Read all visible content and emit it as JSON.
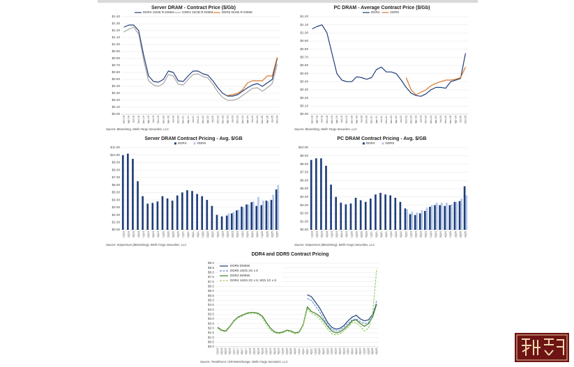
{
  "chart_data": [
    {
      "type": "line",
      "title": "Server DRAM - Contract Price ($/Gb)",
      "source": "Source: Bloomberg, Wells Fargo Securities, LLC",
      "legend": "top",
      "grid": true,
      "categories": [
        "Jan-18",
        "Apr-18",
        "Jul-18",
        "Oct-18",
        "Jan-19",
        "Apr-19",
        "Jul-19",
        "Oct-19",
        "Jan-20",
        "Apr-20",
        "Jul-20",
        "Oct-20",
        "Jan-21",
        "Apr-21",
        "Jul-21",
        "Oct-21",
        "Jan-22",
        "Apr-22",
        "Jul-22",
        "Oct-22",
        "Jan-23",
        "Apr-23",
        "Jul-23",
        "Oct-23",
        "Jan-24",
        "Apr-24",
        "Jul-24",
        "Oct-24",
        "Jan-25",
        "Apr-25",
        "Jul-25",
        "Oct-25"
      ],
      "series": [
        {
          "name": "DDR4 16GB R-DIMM",
          "color": "#1f3d7a",
          "values": [
            1.25,
            1.28,
            1.28,
            1.2,
            0.85,
            0.55,
            0.47,
            0.46,
            0.5,
            0.62,
            0.6,
            0.48,
            0.47,
            0.55,
            0.62,
            0.62,
            0.58,
            0.56,
            0.48,
            0.38,
            0.3,
            0.26,
            0.26,
            0.28,
            0.33,
            0.38,
            0.42,
            0.44,
            0.4,
            0.45,
            0.5,
            0.8
          ]
        },
        {
          "name": "DDR4 32GB R-DIMM",
          "color": "#a6a6a6",
          "values": [
            1.18,
            1.22,
            1.25,
            1.15,
            0.78,
            0.48,
            0.42,
            0.4,
            0.44,
            0.57,
            0.55,
            0.43,
            0.42,
            0.5,
            0.57,
            0.58,
            0.54,
            0.52,
            0.43,
            0.32,
            0.24,
            0.2,
            0.2,
            0.22,
            0.27,
            0.32,
            0.37,
            0.38,
            0.33,
            0.38,
            0.44,
            0.72
          ]
        },
        {
          "name": "DDR5 64GB R-DIMM",
          "color": "#d9742b",
          "values": [
            null,
            null,
            null,
            null,
            null,
            null,
            null,
            null,
            null,
            null,
            null,
            null,
            null,
            null,
            null,
            null,
            null,
            null,
            null,
            null,
            null,
            0.27,
            0.28,
            0.3,
            0.35,
            0.45,
            0.48,
            0.48,
            0.48,
            0.55,
            0.55,
            0.82
          ]
        }
      ],
      "ylim": [
        0,
        1.4
      ],
      "yticks": [
        {
          "value": 0,
          "label": "$0.00"
        },
        {
          "value": 0.1,
          "label": "$0.10"
        },
        {
          "value": 0.2,
          "label": "$0.20"
        },
        {
          "value": 0.3,
          "label": "$0.30"
        },
        {
          "value": 0.4,
          "label": "$0.40"
        },
        {
          "value": 0.5,
          "label": "$0.50"
        },
        {
          "value": 0.6,
          "label": "$0.60"
        },
        {
          "value": 0.7,
          "label": "$0.70"
        },
        {
          "value": 0.8,
          "label": "$0.80"
        },
        {
          "value": 0.9,
          "label": "$0.90"
        },
        {
          "value": 1.0,
          "label": "$1.00"
        },
        {
          "value": 1.1,
          "label": "$1.10"
        },
        {
          "value": 1.2,
          "label": "$1.20"
        },
        {
          "value": 1.3,
          "label": "$1.30"
        },
        {
          "value": 1.4,
          "label": "$1.40"
        }
      ]
    },
    {
      "type": "line",
      "title": "PC DRAM - Average Contract Price ($/Gb)",
      "source": "Source: Bloomberg, Wells Fargo Securities, LLC",
      "legend": "top",
      "grid": true,
      "categories": [
        "Jan-18",
        "Apr-18",
        "Jul-18",
        "Oct-18",
        "Jan-19",
        "Apr-19",
        "Jul-19",
        "Oct-19",
        "Jan-20",
        "Apr-20",
        "Jul-20",
        "Oct-20",
        "Jan-21",
        "Apr-21",
        "Jul-21",
        "Oct-21",
        "Jan-22",
        "Apr-22",
        "Jul-22",
        "Oct-22",
        "Jan-23",
        "Apr-23",
        "Jul-23",
        "Oct-23",
        "Jan-24",
        "Apr-24",
        "Jul-24",
        "Oct-24",
        "Jan-25",
        "Apr-25",
        "Jul-25",
        "Oct-25"
      ],
      "series": [
        {
          "name": "DDR4",
          "color": "#1f3d7a",
          "values": [
            1.05,
            1.08,
            1.1,
            1.0,
            0.75,
            0.5,
            0.42,
            0.4,
            0.4,
            0.46,
            0.45,
            0.43,
            0.45,
            0.55,
            0.58,
            0.52,
            0.52,
            0.5,
            0.42,
            0.33,
            0.26,
            0.23,
            0.22,
            0.25,
            0.3,
            0.33,
            0.33,
            0.32,
            0.4,
            0.42,
            0.44,
            0.75
          ]
        },
        {
          "name": "DDR5",
          "color": "#d9742b",
          "values": [
            null,
            null,
            null,
            null,
            null,
            null,
            null,
            null,
            null,
            null,
            null,
            null,
            null,
            null,
            null,
            null,
            null,
            null,
            null,
            0.45,
            0.3,
            0.24,
            0.27,
            0.3,
            0.35,
            0.38,
            0.4,
            0.42,
            0.42,
            0.43,
            0.45,
            0.58
          ]
        }
      ],
      "ylim": [
        0,
        1.2
      ],
      "yticks": [
        {
          "value": 0,
          "label": "$0.00"
        },
        {
          "value": 0.1,
          "label": "$0.10"
        },
        {
          "value": 0.2,
          "label": "$0.20"
        },
        {
          "value": 0.3,
          "label": "$0.30"
        },
        {
          "value": 0.4,
          "label": "$0.40"
        },
        {
          "value": 0.5,
          "label": "$0.50"
        },
        {
          "value": 0.6,
          "label": "$0.60"
        },
        {
          "value": 0.7,
          "label": "$0.70"
        },
        {
          "value": 0.8,
          "label": "$0.80"
        },
        {
          "value": 0.9,
          "label": "$0.90"
        },
        {
          "value": 1.0,
          "label": "$1.00"
        },
        {
          "value": 1.1,
          "label": "$1.10"
        },
        {
          "value": 1.2,
          "label": "$1.20"
        }
      ]
    },
    {
      "type": "bar",
      "title": "Server DRAM Contract Pricing - Avg. $/GB",
      "source": "Source: InSpectrum (Bloomberg), Wells Fargo Securities, LLC",
      "legend": "top",
      "grid": true,
      "categories": [
        "1Q18",
        "2Q18",
        "3Q18",
        "4Q18",
        "1Q19",
        "2Q19",
        "3Q19",
        "4Q19",
        "1Q20",
        "2Q20",
        "3Q20",
        "4Q20",
        "1Q21",
        "2Q21",
        "3Q21",
        "4Q21",
        "1Q22",
        "2Q22",
        "3Q22",
        "4Q22",
        "1Q23",
        "2Q23",
        "3Q23",
        "4Q23",
        "1Q24",
        "2Q24",
        "3Q24",
        "4Q24",
        "1Q25",
        "2Q25",
        "3Q25",
        "4Q25"
      ],
      "series": [
        {
          "name": "DDR4",
          "color": "#1f3d7a",
          "values": [
            10.0,
            10.2,
            9.5,
            6.5,
            4.5,
            3.5,
            3.6,
            3.8,
            4.5,
            4.2,
            3.9,
            4.6,
            5.0,
            5.3,
            5.2,
            4.8,
            4.5,
            4.0,
            3.2,
            2.0,
            1.8,
            1.9,
            2.2,
            2.6,
            3.1,
            3.4,
            3.7,
            3.2,
            3.3,
            3.9,
            4.0,
            5.4
          ]
        },
        {
          "name": "DDR5",
          "color": "#b4c7e7",
          "values": [
            null,
            null,
            null,
            null,
            null,
            null,
            null,
            null,
            null,
            null,
            null,
            null,
            null,
            null,
            null,
            null,
            null,
            null,
            null,
            null,
            null,
            2.2,
            2.4,
            2.7,
            3.0,
            3.4,
            3.8,
            4.4,
            3.9,
            3.8,
            4.7,
            6.0
          ]
        }
      ],
      "ylim": [
        0,
        11
      ],
      "yticks": [
        {
          "value": 0,
          "label": "$0.00"
        },
        {
          "value": 1,
          "label": "$1.00"
        },
        {
          "value": 2,
          "label": "$2.00"
        },
        {
          "value": 3,
          "label": "$3.00"
        },
        {
          "value": 4,
          "label": "$4.00"
        },
        {
          "value": 5,
          "label": "$5.00"
        },
        {
          "value": 6,
          "label": "$6.00"
        },
        {
          "value": 7,
          "label": "$7.00"
        },
        {
          "value": 8,
          "label": "$8.00"
        },
        {
          "value": 9,
          "label": "$9.00"
        },
        {
          "value": 10,
          "label": "$10.00"
        },
        {
          "value": 11,
          "label": "$11.00"
        }
      ]
    },
    {
      "type": "bar",
      "title": "PC DRAM Contract Pricing - Avg. $/GB",
      "source": "Source: InSpectrum (Bloomberg), Wells Fargo Securities, LLC",
      "legend": "top",
      "grid": true,
      "categories": [
        "1Q18",
        "2Q18",
        "3Q18",
        "4Q18",
        "1Q19",
        "2Q19",
        "3Q19",
        "4Q19",
        "1Q20",
        "2Q20",
        "3Q20",
        "4Q20",
        "1Q21",
        "2Q21",
        "3Q21",
        "4Q21",
        "1Q22",
        "2Q22",
        "3Q22",
        "4Q22",
        "1Q23",
        "2Q23",
        "3Q23",
        "4Q23",
        "1Q24",
        "2Q24",
        "3Q24",
        "4Q24",
        "1Q25",
        "2Q25",
        "3Q25",
        "4Q25"
      ],
      "series": [
        {
          "name": "DDR4",
          "color": "#1f3d7a",
          "values": [
            8.5,
            8.7,
            8.7,
            7.8,
            5.5,
            4.0,
            3.3,
            3.1,
            3.2,
            3.9,
            3.6,
            3.4,
            3.8,
            4.3,
            4.5,
            4.3,
            4.2,
            3.9,
            3.4,
            2.6,
            1.9,
            1.8,
            2.0,
            2.3,
            2.8,
            3.0,
            3.0,
            2.9,
            3.0,
            3.4,
            3.5,
            5.3
          ]
        },
        {
          "name": "DDR5",
          "color": "#b4c7e7",
          "values": [
            null,
            null,
            null,
            null,
            null,
            null,
            null,
            null,
            null,
            null,
            null,
            null,
            null,
            null,
            null,
            null,
            null,
            null,
            null,
            2.5,
            2.2,
            2.1,
            2.4,
            2.7,
            3.0,
            3.3,
            3.3,
            3.3,
            3.1,
            3.4,
            3.8,
            4.2
          ]
        }
      ],
      "ylim": [
        0,
        10
      ],
      "yticks": [
        {
          "value": 0,
          "label": "$0.00"
        },
        {
          "value": 1,
          "label": "$1.00"
        },
        {
          "value": 2,
          "label": "$2.00"
        },
        {
          "value": 3,
          "label": "$3.00"
        },
        {
          "value": 4,
          "label": "$4.00"
        },
        {
          "value": 5,
          "label": "$5.00"
        },
        {
          "value": 6,
          "label": "$6.00"
        },
        {
          "value": 7,
          "label": "$7.00"
        },
        {
          "value": 8,
          "label": "$8.00"
        },
        {
          "value": 9,
          "label": "$9.00"
        },
        {
          "value": 10,
          "label": "$10.00"
        }
      ]
    },
    {
      "type": "line",
      "title": "DDR4 and DDR5 Contract Pricing",
      "source": "Source: TrendForce / DRAMeXchange, Wells Fargo Securities, LLC",
      "legend": "upper left",
      "grid": true,
      "categories": [
        "1Q16",
        "2Q16",
        "3Q16",
        "4Q16",
        "1Q17",
        "2Q17",
        "3Q17",
        "4Q17",
        "1Q18",
        "2Q18",
        "3Q18",
        "4Q18",
        "1Q19",
        "2Q19",
        "3Q19",
        "4Q19",
        "1Q20",
        "2Q20",
        "3Q20",
        "4Q20",
        "1Q21",
        "2Q21",
        "3Q21",
        "4Q21",
        "1Q22",
        "2Q22",
        "3Q22",
        "4Q22",
        "1Q23",
        "2Q23",
        "3Q23",
        "4Q23",
        "1Q24",
        "2Q24",
        "3Q24",
        "4Q24",
        "1Q25",
        "2Q25",
        "3Q25",
        "4Q25"
      ],
      "series": [
        {
          "name": "DDR5 DIMMs",
          "color": "#1f3d7a",
          "style": "solid",
          "values": [
            null,
            null,
            null,
            null,
            null,
            null,
            null,
            null,
            null,
            null,
            null,
            null,
            null,
            null,
            null,
            null,
            null,
            null,
            null,
            null,
            null,
            null,
            5.6,
            5.4,
            4.8,
            4.2,
            3.4,
            2.6,
            2.1,
            1.9,
            2.0,
            2.3,
            2.8,
            3.2,
            3.4,
            3.0,
            2.8,
            2.9,
            3.5,
            4.6
          ]
        },
        {
          "name": "DDR5 16Gb 2G x 8",
          "color": "#5b8fd0",
          "style": "dashed",
          "values": [
            null,
            null,
            null,
            null,
            null,
            null,
            null,
            null,
            null,
            null,
            null,
            null,
            null,
            null,
            null,
            null,
            null,
            null,
            null,
            null,
            null,
            null,
            5.2,
            5.0,
            4.4,
            3.8,
            3.0,
            2.3,
            1.9,
            1.7,
            1.8,
            2.1,
            2.5,
            2.9,
            3.0,
            2.7,
            2.5,
            2.6,
            3.3,
            5.0
          ]
        },
        {
          "name": "DDR4 DIMMs",
          "color": "#3e7d2a",
          "style": "solid",
          "values": [
            2.1,
            1.8,
            1.7,
            2.2,
            2.8,
            3.2,
            3.4,
            3.6,
            3.7,
            3.7,
            3.6,
            3.3,
            2.6,
            2.0,
            1.6,
            1.5,
            1.6,
            1.8,
            1.7,
            1.5,
            1.6,
            2.4,
            4.3,
            3.8,
            3.6,
            3.3,
            2.8,
            2.2,
            1.7,
            1.5,
            1.6,
            1.9,
            2.3,
            2.8,
            2.9,
            2.5,
            2.2,
            2.5,
            3.2,
            4.6
          ]
        },
        {
          "name": "DDR4 16Gb 2G x 8, 8Gb 1G x 8",
          "color": "#9ccf6e",
          "style": "dashed",
          "values": [
            2.0,
            1.7,
            1.6,
            2.1,
            2.7,
            3.1,
            3.3,
            3.5,
            3.6,
            3.6,
            3.5,
            3.1,
            2.4,
            1.8,
            1.5,
            1.4,
            1.5,
            1.7,
            1.6,
            1.4,
            1.5,
            2.3,
            4.1,
            3.6,
            3.4,
            3.0,
            2.5,
            1.9,
            1.4,
            1.3,
            1.4,
            1.7,
            2.1,
            2.6,
            2.6,
            2.2,
            1.7,
            2.0,
            3.5,
            8.4
          ]
        }
      ],
      "ylim": [
        0,
        9
      ],
      "yticks": [
        {
          "value": 0,
          "label": "$0.0"
        },
        {
          "value": 0.5,
          "label": "$0.5"
        },
        {
          "value": 1,
          "label": "$1.0"
        },
        {
          "value": 1.5,
          "label": "$1.5"
        },
        {
          "value": 2,
          "label": "$2.0"
        },
        {
          "value": 2.5,
          "label": "$2.5"
        },
        {
          "value": 3,
          "label": "$3.0"
        },
        {
          "value": 3.5,
          "label": "$3.5"
        },
        {
          "value": 4,
          "label": "$4.0"
        },
        {
          "value": 4.5,
          "label": "$4.5"
        },
        {
          "value": 5,
          "label": "$5.0"
        },
        {
          "value": 5.5,
          "label": "$5.5"
        },
        {
          "value": 6,
          "label": "$6.0"
        },
        {
          "value": 6.5,
          "label": "$6.5"
        },
        {
          "value": 7,
          "label": "$7.0"
        },
        {
          "value": 7.5,
          "label": "$7.5"
        },
        {
          "value": 8,
          "label": "$8.0"
        },
        {
          "value": 8.5,
          "label": "$8.5"
        },
        {
          "value": 9,
          "label": "$9.0"
        }
      ]
    }
  ]
}
